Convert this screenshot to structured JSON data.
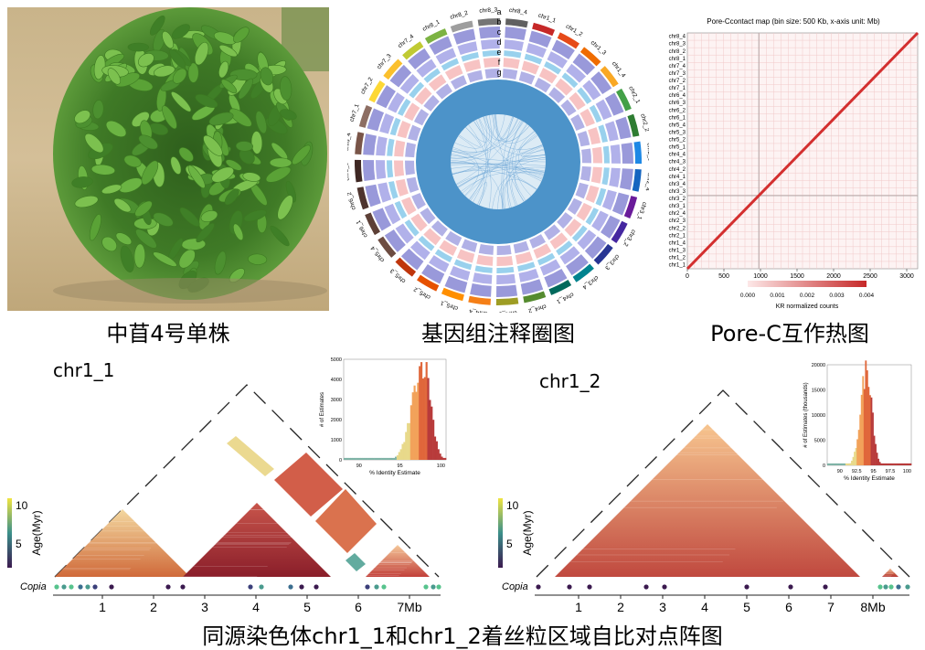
{
  "captions": {
    "plant": "中苜4号单株",
    "circos": "基因组注释圈图",
    "porec": "Pore-C互作热图",
    "bottom": "同源染色体chr1_1和chr1_2着丝粒区域自比对点阵图"
  },
  "circos": {
    "track_letters": [
      "a",
      "b",
      "c",
      "d",
      "e",
      "f",
      "g"
    ],
    "chromosomes": [
      "chr1_1",
      "chr1_2",
      "chr1_3",
      "chr1_4",
      "chr2_1",
      "chr2_2",
      "chr2_3",
      "chr2_4",
      "chr3_1",
      "chr3_2",
      "chr3_3",
      "chr3_4",
      "chr4_1",
      "chr4_2",
      "chr4_3",
      "chr4_4",
      "chr5_1",
      "chr5_2",
      "chr5_3",
      "chr5_4",
      "chr6_1",
      "chr6_2",
      "chr6_3",
      "chr6_4",
      "chr7_1",
      "chr7_2",
      "chr7_3",
      "chr7_4",
      "chr8_1",
      "chr8_2",
      "chr8_3",
      "chr8_4"
    ],
    "colors": [
      "#c62828",
      "#e64a19",
      "#ef6c00",
      "#f9a825",
      "#43a047",
      "#2e7d32",
      "#1e88e5",
      "#1565c0",
      "#6a1b9a",
      "#4527a0",
      "#283593",
      "#00838f",
      "#00695c",
      "#558b2f",
      "#9e9d24",
      "#f57f17",
      "#ff8f00",
      "#e65100",
      "#bf360c",
      "#6d4c41",
      "#5d4037",
      "#4e342e",
      "#3e2723",
      "#795548",
      "#8d6e63",
      "#fdd835",
      "#fbc02d",
      "#c0ca33",
      "#7cb342",
      "#9e9e9e",
      "#757575",
      "#616161"
    ]
  },
  "porec": {
    "title": "Pore-Ccontact map (bin size: 500 Kb, x-axis unit: Mb)",
    "y_labels": [
      "chr8_4",
      "chr8_3",
      "chr8_2",
      "chr8_1",
      "chr7_4",
      "chr7_3",
      "chr7_2",
      "chr7_1",
      "chr6_4",
      "chr6_3",
      "chr6_2",
      "chr6_1",
      "chr5_4",
      "chr5_3",
      "chr5_2",
      "chr5_1",
      "chr4_4",
      "chr4_3",
      "chr4_2",
      "chr4_1",
      "chr3_4",
      "chr3_3",
      "chr3_2",
      "chr3_1",
      "chr2_4",
      "chr2_3",
      "chr2_2",
      "chr2_1",
      "chr1_4",
      "chr1_3",
      "chr1_2",
      "chr1_1"
    ],
    "x_ticks": [
      "0",
      "500",
      "1000",
      "1500",
      "2000",
      "2500",
      "3000"
    ],
    "colorbar_ticks": [
      "0.000",
      "0.001",
      "0.002",
      "0.003",
      "0.004"
    ],
    "colorbar_label": "KR normalized counts"
  },
  "dotplot1": {
    "title": "chr1_1",
    "legend_title": "Age(Myr)",
    "legend_ticks": [
      "10",
      "5"
    ],
    "track_label": "Copia",
    "x_ticks": [
      "1",
      "2",
      "3",
      "4",
      "5",
      "6",
      "7Mb"
    ],
    "hist_ylabel": "# of Estimates",
    "hist_xlabel": "% Identity Estimate",
    "hist_y_ticks": [
      "5000",
      "4000",
      "3000",
      "2000",
      "1000",
      "0"
    ],
    "hist_x_ticks": [
      "90",
      "95",
      "100"
    ]
  },
  "dotplot2": {
    "title": "chr1_2",
    "legend_title": "Age(Myr)",
    "legend_ticks": [
      "10",
      "5"
    ],
    "track_label": "Copia",
    "x_ticks": [
      "1",
      "2",
      "3",
      "4",
      "5",
      "6",
      "7",
      "8Mb"
    ],
    "hist_ylabel": "# of Estimates (thousands)",
    "hist_xlabel": "% Identity Estimate",
    "hist_y_ticks": [
      "20000",
      "15000",
      "10000",
      "5000",
      "0"
    ],
    "hist_x_ticks": [
      "90",
      "92.5",
      "95",
      "97.5",
      "100"
    ]
  }
}
